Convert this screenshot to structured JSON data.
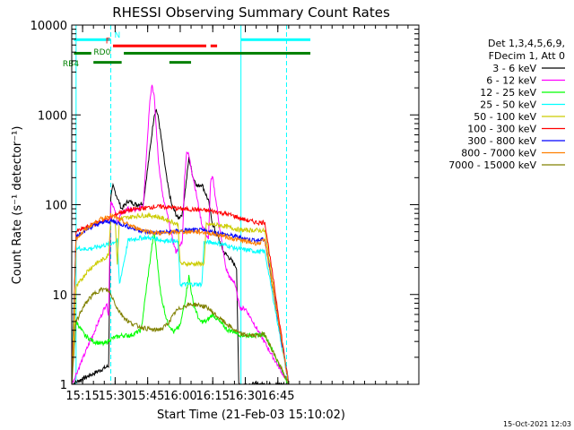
{
  "footer": {
    "timestamp": "15-Oct-2021 12:03"
  },
  "chart_data": {
    "type": "line",
    "title": "RHESSI Observing Summary Count Rates",
    "xlabel": "Start Time (21-Feb-03 15:10:02)",
    "ylabel": "Count Rate (s⁻¹ detector⁻¹)",
    "x_unit": "minutes after 15:00 UT",
    "xlim": [
      10,
      170
    ],
    "ylim": [
      1,
      10000
    ],
    "yscale": "log",
    "xticks": [
      {
        "value": 15,
        "label": "15:15"
      },
      {
        "value": 30,
        "label": "15:30"
      },
      {
        "value": 45,
        "label": "15:45"
      },
      {
        "value": 60,
        "label": "16:00"
      },
      {
        "value": 75,
        "label": "16:15"
      },
      {
        "value": 90,
        "label": "16:30"
      },
      {
        "value": 105,
        "label": "16:45"
      }
    ],
    "yticks": [
      {
        "value": 1,
        "label": "1"
      },
      {
        "value": 10,
        "label": "10"
      },
      {
        "value": 100,
        "label": "100"
      },
      {
        "value": 1000,
        "label": "1000"
      },
      {
        "value": 10000,
        "label": "10000"
      }
    ],
    "legend": {
      "position": "right",
      "header": [
        "Det 1,3,4,5,6,9,",
        "FDecim 1, Att 0"
      ]
    },
    "vlines": [
      {
        "x": 12,
        "color": "#00ffff",
        "style": "solid"
      },
      {
        "x": 28,
        "color": "#00ffff",
        "style": "dashed"
      },
      {
        "x": 88,
        "color": "#00ffff",
        "style": "solid"
      },
      {
        "x": 109,
        "color": "#00ffff",
        "style": "dashed"
      }
    ],
    "flag_bars": [
      {
        "label": "N",
        "color": "#00ffff",
        "y": 6800,
        "segments": [
          [
            11,
            28
          ],
          [
            88,
            120
          ]
        ]
      },
      {
        "label": "F",
        "color": "#ff0000",
        "y": 5800,
        "segments": [
          [
            29,
            72
          ],
          [
            74,
            77
          ]
        ]
      },
      {
        "label": "RD0",
        "color": "#008000",
        "y": 4800,
        "segments": [
          [
            11,
            19
          ],
          [
            34,
            120
          ]
        ]
      },
      {
        "label": "RB4",
        "color": "#008000",
        "y": 3800,
        "segments": [
          [
            20,
            33
          ],
          [
            55,
            65
          ]
        ]
      }
    ],
    "series": [
      {
        "name": "3 - 6 keV",
        "color": "#000000",
        "points": [
          [
            10,
            1
          ],
          [
            27,
            1.6
          ],
          [
            28,
            120
          ],
          [
            29,
            160
          ],
          [
            31,
            120
          ],
          [
            33,
            90
          ],
          [
            36,
            110
          ],
          [
            40,
            100
          ],
          [
            43,
            105
          ],
          [
            46,
            400
          ],
          [
            48,
            1000
          ],
          [
            49,
            1150
          ],
          [
            50,
            900
          ],
          [
            52,
            400
          ],
          [
            54,
            180
          ],
          [
            56,
            100
          ],
          [
            59,
            70
          ],
          [
            61,
            80
          ],
          [
            63,
            200
          ],
          [
            64,
            330
          ],
          [
            66,
            200
          ],
          [
            68,
            160
          ],
          [
            70,
            170
          ],
          [
            73,
            110
          ],
          [
            75,
            60
          ],
          [
            78,
            40
          ],
          [
            80,
            30
          ],
          [
            83,
            25
          ],
          [
            86,
            20
          ],
          [
            87,
            1
          ],
          [
            110,
            1
          ]
        ]
      },
      {
        "name": "6 - 12 keV",
        "color": "#ff00ff",
        "points": [
          [
            10,
            1
          ],
          [
            26,
            8
          ],
          [
            27,
            6
          ],
          [
            28,
            110
          ],
          [
            29,
            100
          ],
          [
            31,
            65
          ],
          [
            33,
            80
          ],
          [
            36,
            90
          ],
          [
            40,
            85
          ],
          [
            43,
            100
          ],
          [
            46,
            1500
          ],
          [
            47,
            2200
          ],
          [
            48,
            1600
          ],
          [
            50,
            300
          ],
          [
            52,
            120
          ],
          [
            54,
            80
          ],
          [
            56,
            45
          ],
          [
            58,
            30
          ],
          [
            60,
            35
          ],
          [
            61,
            40
          ],
          [
            62,
            200
          ],
          [
            63,
            400
          ],
          [
            64,
            350
          ],
          [
            66,
            200
          ],
          [
            68,
            110
          ],
          [
            70,
            60
          ],
          [
            73,
            40
          ],
          [
            74,
            180
          ],
          [
            75,
            200
          ],
          [
            77,
            90
          ],
          [
            79,
            40
          ],
          [
            81,
            20
          ],
          [
            83,
            15
          ],
          [
            85,
            14
          ],
          [
            87,
            8
          ],
          [
            88,
            7
          ],
          [
            90,
            7
          ],
          [
            110,
            1
          ]
        ]
      },
      {
        "name": "12 - 25 keV",
        "color": "#00ff00",
        "points": [
          [
            10,
            3
          ],
          [
            12,
            5
          ],
          [
            16,
            3.5
          ],
          [
            20,
            3
          ],
          [
            25,
            2.8
          ],
          [
            28,
            3.2
          ],
          [
            33,
            3.5
          ],
          [
            37,
            3.5
          ],
          [
            42,
            4
          ],
          [
            45,
            15
          ],
          [
            47,
            35
          ],
          [
            48,
            50
          ],
          [
            49,
            30
          ],
          [
            51,
            10
          ],
          [
            54,
            5
          ],
          [
            57,
            3.8
          ],
          [
            60,
            4.5
          ],
          [
            62,
            8
          ],
          [
            64,
            16
          ],
          [
            66,
            8
          ],
          [
            69,
            5
          ],
          [
            72,
            5
          ],
          [
            75,
            6
          ],
          [
            78,
            5
          ],
          [
            82,
            4
          ],
          [
            86,
            3.8
          ],
          [
            88,
            3.5
          ],
          [
            90,
            3.5
          ],
          [
            95,
            3.5
          ],
          [
            99,
            3.6
          ],
          [
            110,
            1
          ]
        ]
      },
      {
        "name": "25 - 50 keV",
        "color": "#00ffff",
        "points": [
          [
            10,
            2
          ],
          [
            12,
            33
          ],
          [
            16,
            32
          ],
          [
            20,
            33
          ],
          [
            24,
            35
          ],
          [
            27,
            36
          ],
          [
            29,
            38
          ],
          [
            31,
            40
          ],
          [
            32,
            13
          ],
          [
            36,
            40
          ],
          [
            40,
            42
          ],
          [
            44,
            43
          ],
          [
            48,
            42
          ],
          [
            52,
            40
          ],
          [
            56,
            40
          ],
          [
            59,
            38
          ],
          [
            60,
            13
          ],
          [
            70,
            13
          ],
          [
            71,
            38
          ],
          [
            75,
            38
          ],
          [
            78,
            37
          ],
          [
            82,
            35
          ],
          [
            85,
            33
          ],
          [
            88,
            32
          ],
          [
            92,
            31
          ],
          [
            96,
            30
          ],
          [
            99,
            30
          ],
          [
            110,
            1
          ]
        ]
      },
      {
        "name": "50 - 100 keV",
        "color": "#cccc00",
        "points": [
          [
            10,
            1
          ],
          [
            12,
            12
          ],
          [
            17,
            18
          ],
          [
            21,
            22
          ],
          [
            25,
            25
          ],
          [
            27,
            28
          ],
          [
            28,
            70
          ],
          [
            30,
            65
          ],
          [
            31,
            22
          ],
          [
            32,
            70
          ],
          [
            36,
            72
          ],
          [
            40,
            75
          ],
          [
            44,
            76
          ],
          [
            48,
            75
          ],
          [
            52,
            70
          ],
          [
            56,
            65
          ],
          [
            59,
            60
          ],
          [
            60,
            22
          ],
          [
            71,
            22
          ],
          [
            72,
            60
          ],
          [
            76,
            60
          ],
          [
            80,
            58
          ],
          [
            84,
            55
          ],
          [
            88,
            52
          ],
          [
            92,
            52
          ],
          [
            96,
            52
          ],
          [
            99,
            51
          ],
          [
            110,
            1
          ]
        ]
      },
      {
        "name": "100 - 300 keV",
        "color": "#ff0000",
        "points": [
          [
            10,
            1
          ],
          [
            12,
            50
          ],
          [
            16,
            55
          ],
          [
            20,
            60
          ],
          [
            24,
            66
          ],
          [
            28,
            72
          ],
          [
            32,
            82
          ],
          [
            36,
            86
          ],
          [
            40,
            90
          ],
          [
            44,
            92
          ],
          [
            48,
            95
          ],
          [
            52,
            95
          ],
          [
            56,
            93
          ],
          [
            60,
            90
          ],
          [
            64,
            89
          ],
          [
            68,
            88
          ],
          [
            72,
            86
          ],
          [
            76,
            84
          ],
          [
            80,
            80
          ],
          [
            84,
            76
          ],
          [
            88,
            70
          ],
          [
            92,
            66
          ],
          [
            96,
            63
          ],
          [
            99,
            64
          ],
          [
            110,
            1
          ]
        ]
      },
      {
        "name": "300 - 800 keV",
        "color": "#0000ff",
        "points": [
          [
            10,
            1
          ],
          [
            12,
            45
          ],
          [
            16,
            52
          ],
          [
            20,
            58
          ],
          [
            24,
            63
          ],
          [
            28,
            66
          ],
          [
            32,
            62
          ],
          [
            36,
            57
          ],
          [
            40,
            53
          ],
          [
            44,
            50
          ],
          [
            48,
            49
          ],
          [
            52,
            49
          ],
          [
            56,
            50
          ],
          [
            60,
            51
          ],
          [
            64,
            52
          ],
          [
            68,
            52
          ],
          [
            72,
            51
          ],
          [
            76,
            49
          ],
          [
            80,
            47
          ],
          [
            84,
            45
          ],
          [
            88,
            43
          ],
          [
            92,
            41
          ],
          [
            96,
            40
          ],
          [
            99,
            41
          ],
          [
            110,
            1
          ]
        ]
      },
      {
        "name": "800 - 7000 keV",
        "color": "#ff8000",
        "points": [
          [
            10,
            1
          ],
          [
            12,
            42
          ],
          [
            16,
            52
          ],
          [
            20,
            62
          ],
          [
            24,
            70
          ],
          [
            28,
            76
          ],
          [
            32,
            68
          ],
          [
            36,
            60
          ],
          [
            40,
            55
          ],
          [
            44,
            51
          ],
          [
            48,
            49
          ],
          [
            52,
            48
          ],
          [
            56,
            49
          ],
          [
            60,
            50
          ],
          [
            64,
            50
          ],
          [
            68,
            50
          ],
          [
            72,
            49
          ],
          [
            76,
            47
          ],
          [
            80,
            45
          ],
          [
            84,
            42
          ],
          [
            88,
            40
          ],
          [
            92,
            38
          ],
          [
            96,
            37
          ],
          [
            99,
            40
          ],
          [
            110,
            1
          ]
        ]
      },
      {
        "name": "7000 - 15000 keV",
        "color": "#808000",
        "points": [
          [
            10,
            1
          ],
          [
            12,
            5
          ],
          [
            15,
            7
          ],
          [
            18,
            9
          ],
          [
            21,
            10.5
          ],
          [
            24,
            11.5
          ],
          [
            27,
            11
          ],
          [
            29,
            9
          ],
          [
            31,
            7
          ],
          [
            33,
            6
          ],
          [
            36,
            5
          ],
          [
            40,
            4.5
          ],
          [
            44,
            4.2
          ],
          [
            48,
            4
          ],
          [
            52,
            4.2
          ],
          [
            55,
            5
          ],
          [
            58,
            6.5
          ],
          [
            62,
            7.5
          ],
          [
            66,
            7.8
          ],
          [
            70,
            7.5
          ],
          [
            73,
            7
          ],
          [
            76,
            6
          ],
          [
            80,
            5
          ],
          [
            84,
            4.2
          ],
          [
            88,
            3.6
          ],
          [
            92,
            3.5
          ],
          [
            96,
            3.5
          ],
          [
            99,
            3.6
          ],
          [
            110,
            1
          ]
        ]
      }
    ]
  }
}
